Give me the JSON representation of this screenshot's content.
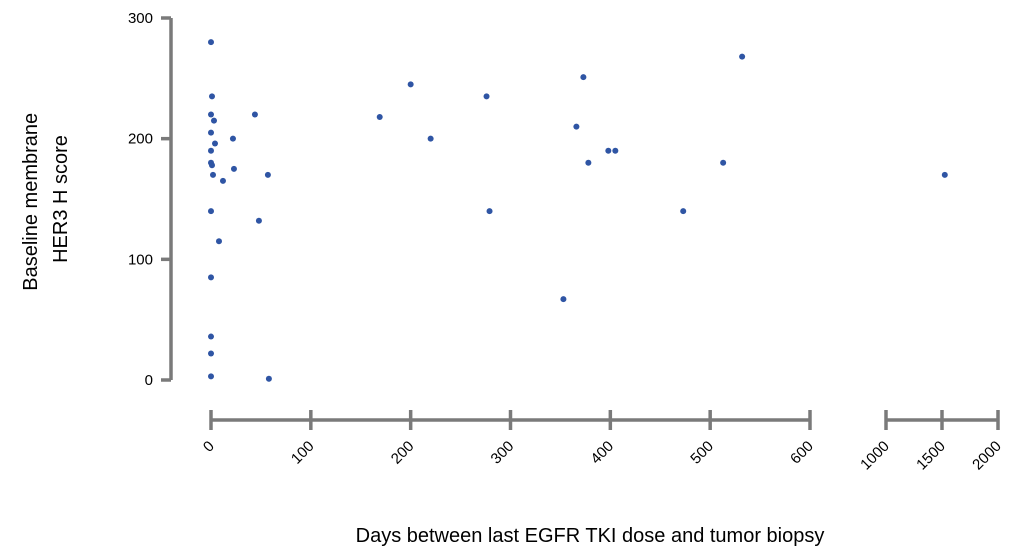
{
  "chart_data": {
    "type": "scatter",
    "xlabel": "Days between last EGFR TKI dose and tumor biopsy",
    "ylabel_lines": [
      "Baseline membrane",
      "HER3 H score"
    ],
    "y_ticks": [
      0,
      100,
      200,
      300
    ],
    "ylim": [
      0,
      300
    ],
    "x_axis_broken": true,
    "x_segments": [
      {
        "range": [
          0,
          600
        ],
        "ticks": [
          0,
          100,
          200,
          300,
          400,
          500,
          600
        ]
      },
      {
        "range": [
          1000,
          2000
        ],
        "ticks": [
          1000,
          1500,
          2000
        ]
      }
    ],
    "grid": false,
    "legend": "none",
    "colors": {
      "points": "#2f55a4",
      "axes": "#7a7a7a"
    },
    "points": [
      [
        0,
        280
      ],
      [
        1,
        235
      ],
      [
        0,
        220
      ],
      [
        3,
        215
      ],
      [
        0,
        205
      ],
      [
        4,
        196
      ],
      [
        0,
        190
      ],
      [
        0,
        180
      ],
      [
        1,
        178
      ],
      [
        2,
        170
      ],
      [
        0,
        140
      ],
      [
        8,
        115
      ],
      [
        0,
        85
      ],
      [
        0,
        36
      ],
      [
        0,
        22
      ],
      [
        0,
        3
      ],
      [
        12,
        165
      ],
      [
        22,
        200
      ],
      [
        23,
        175
      ],
      [
        44,
        220
      ],
      [
        48,
        132
      ],
      [
        57,
        170
      ],
      [
        58,
        1
      ],
      [
        169,
        218
      ],
      [
        200,
        245
      ],
      [
        220,
        200
      ],
      [
        276,
        235
      ],
      [
        279,
        140
      ],
      [
        353,
        67
      ],
      [
        366,
        210
      ],
      [
        373,
        251
      ],
      [
        378,
        180
      ],
      [
        398,
        190
      ],
      [
        405,
        190
      ],
      [
        473,
        140
      ],
      [
        513,
        180
      ],
      [
        532,
        268
      ],
      [
        1525,
        170
      ]
    ]
  }
}
